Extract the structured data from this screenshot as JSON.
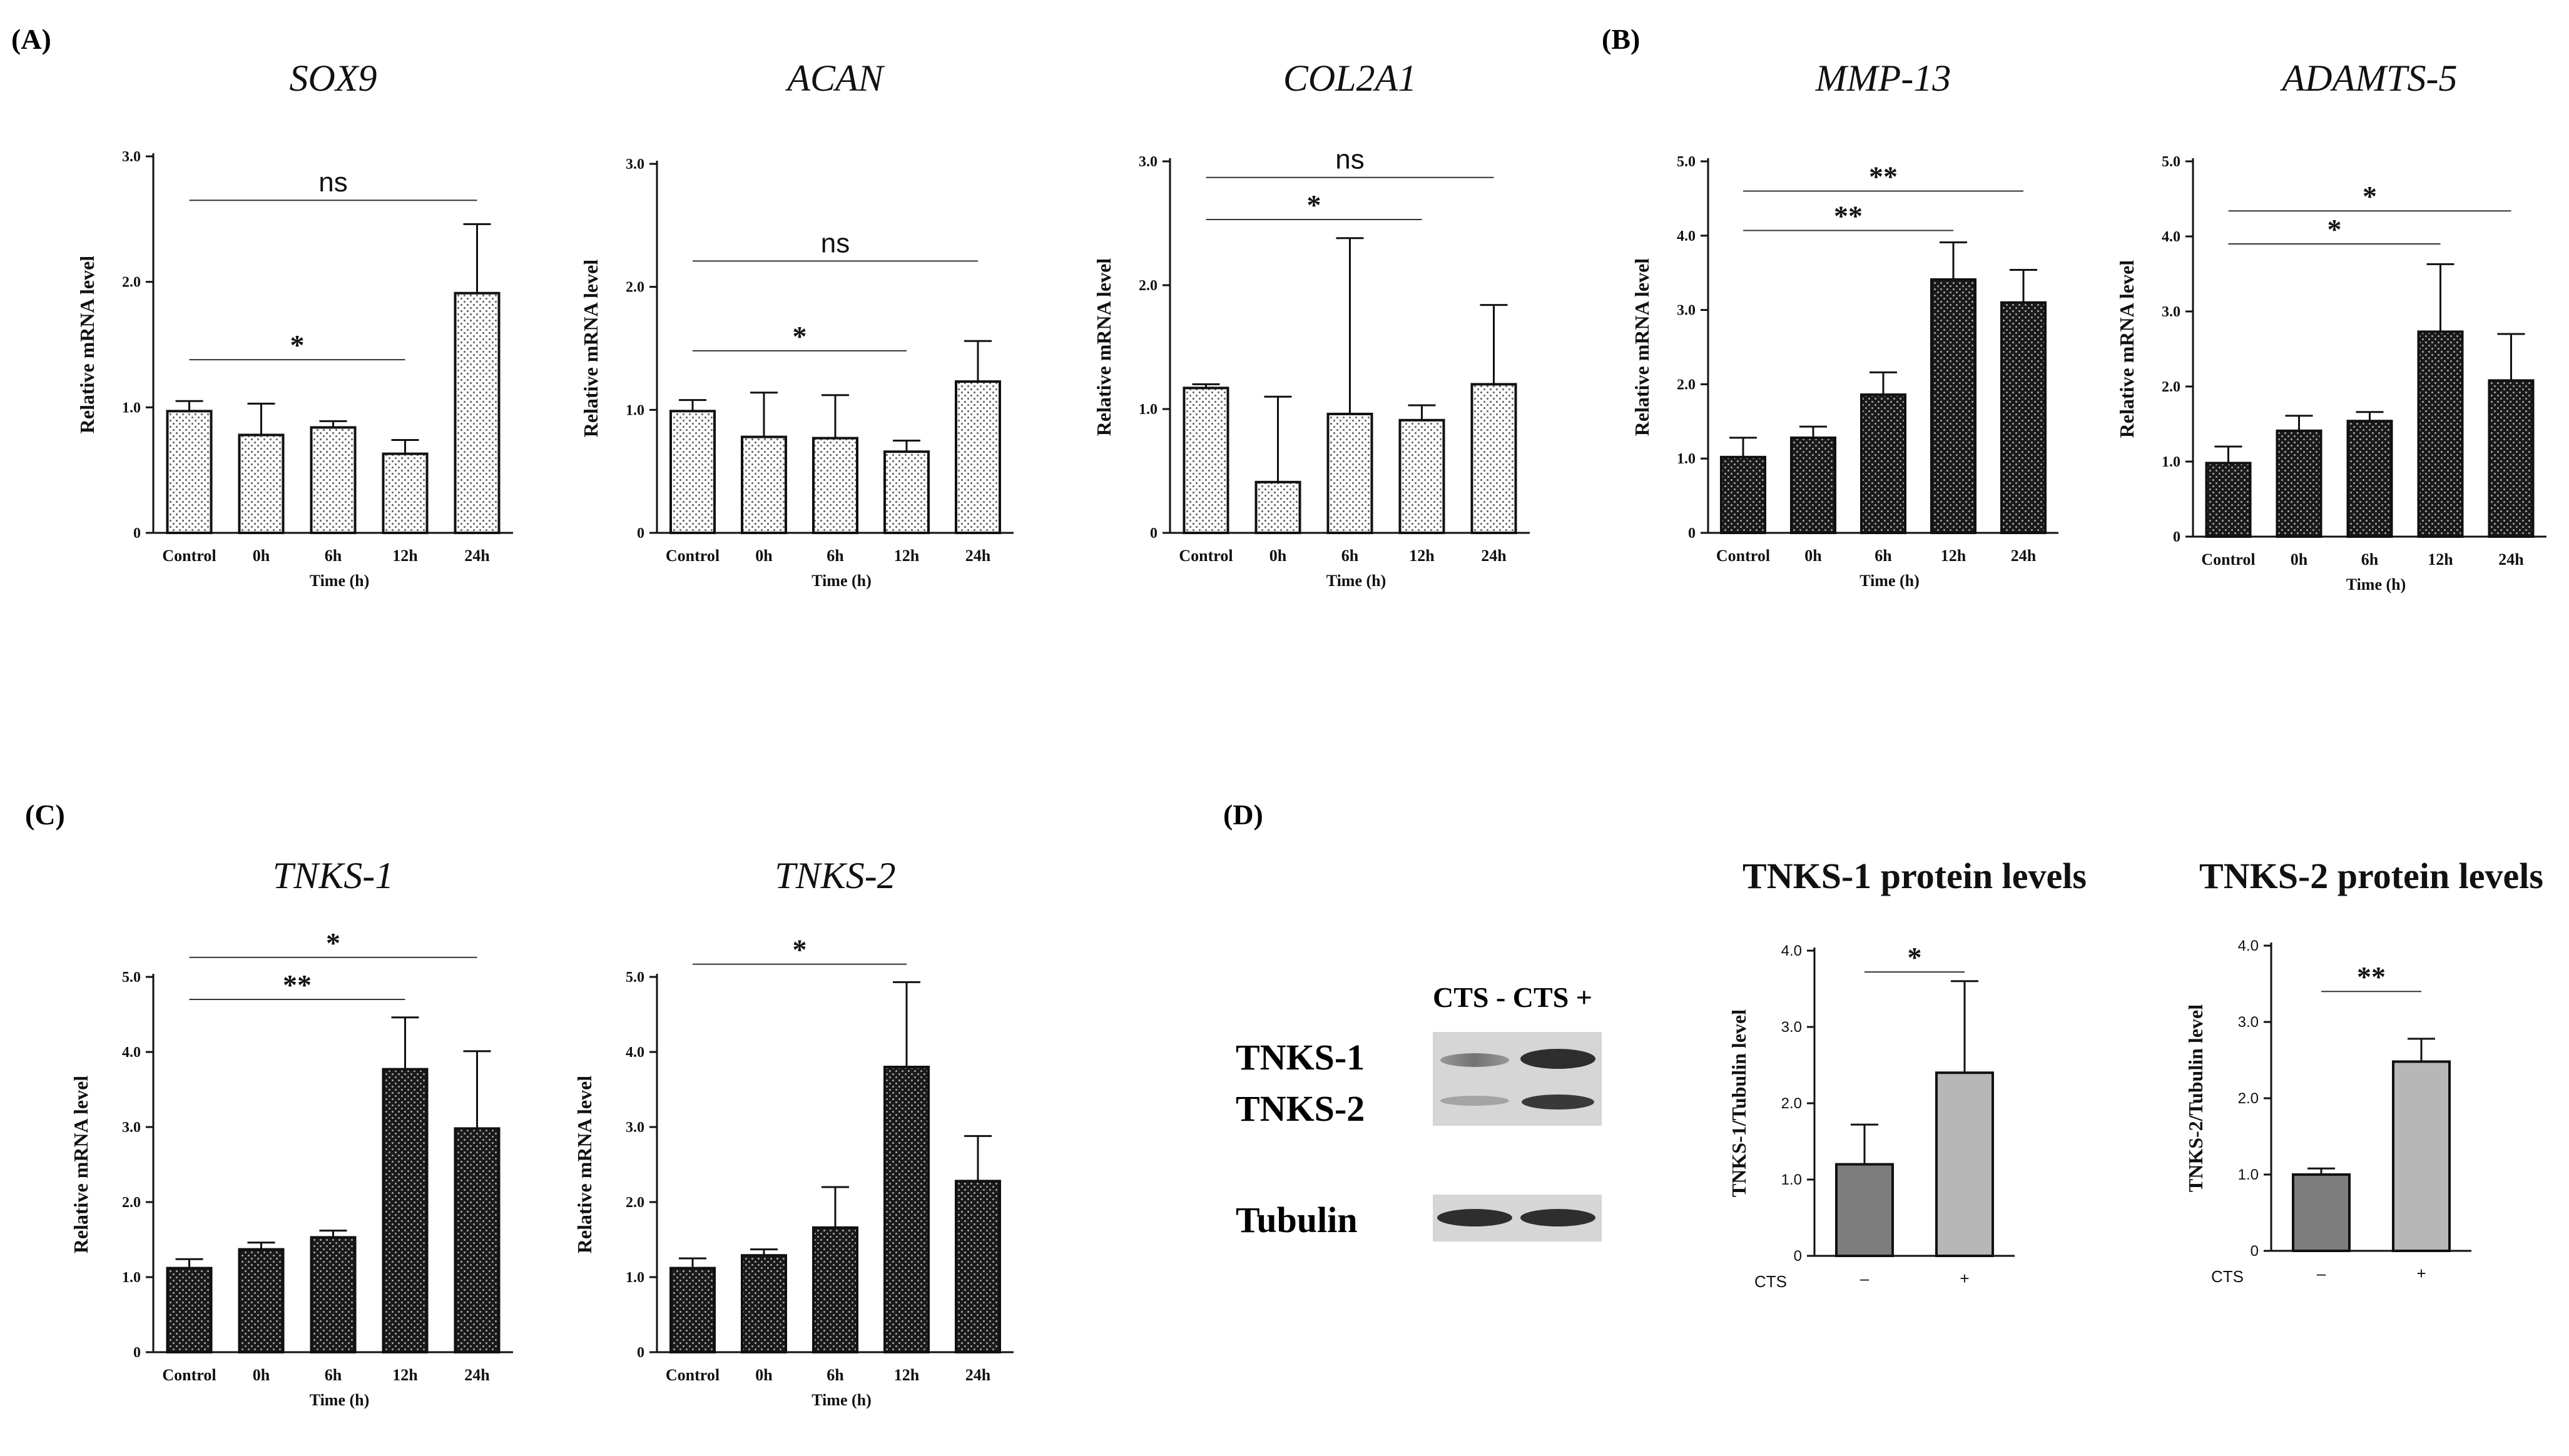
{
  "figure": {
    "panel_labels": [
      "(A)",
      "(B)",
      "(C)",
      "(D)"
    ],
    "blot": {
      "header": "CTS -  CTS +",
      "band_labels": [
        "TNKS-1",
        "TNKS-2",
        "Tubulin"
      ]
    }
  },
  "colors": {
    "axis": "#111111",
    "dark_bar": "#1a1a1a",
    "light_bar": "#ffffff",
    "dot_on_light": "#6a6a6a",
    "dot_on_dark": "#a8a8a8",
    "gray_dark": "#7d7d7d",
    "gray_light": "#b7b7b7"
  },
  "chart_data": [
    {
      "type": "bar",
      "panel": "A",
      "style": "light",
      "title": "SOX9",
      "title_italic": true,
      "xlabel": "Time (h)",
      "ylabel": "Relative mRNA level",
      "categories": [
        "Control",
        "0h",
        "6h",
        "12h",
        "24h"
      ],
      "values": [
        0.97,
        0.78,
        0.84,
        0.63,
        1.91
      ],
      "errors": [
        0.08,
        0.25,
        0.05,
        0.11,
        0.55
      ],
      "ylim": [
        0,
        3.0
      ],
      "yticks": [
        "0",
        "1.0",
        "2.0",
        "3.0"
      ],
      "ytick_values": [
        0,
        1,
        2,
        3
      ],
      "significance": [
        {
          "from": 0,
          "to": 3,
          "label": "*",
          "y": 1.38
        },
        {
          "from": 0,
          "to": 4,
          "label": "ns",
          "y": 2.65
        }
      ]
    },
    {
      "type": "bar",
      "panel": "A",
      "style": "light",
      "title": "ACAN",
      "title_italic": true,
      "xlabel": "Time (h)",
      "ylabel": "Relative mRNA level",
      "categories": [
        "Control",
        "0h",
        "6h",
        "12h",
        "24h"
      ],
      "values": [
        0.99,
        0.78,
        0.77,
        0.66,
        1.23
      ],
      "errors": [
        0.09,
        0.36,
        0.35,
        0.09,
        0.33
      ],
      "ylim": [
        0,
        3.0
      ],
      "yticks": [
        "0",
        "1.0",
        "2.0",
        "3.0"
      ],
      "ytick_values": [
        0,
        1,
        2,
        3
      ],
      "significance": [
        {
          "from": 0,
          "to": 3,
          "label": "*",
          "y": 1.48
        },
        {
          "from": 0,
          "to": 4,
          "label": "ns",
          "y": 2.21
        }
      ]
    },
    {
      "type": "bar",
      "panel": "A",
      "style": "light",
      "title": "COL2A1",
      "title_italic": true,
      "xlabel": "Time (h)",
      "ylabel": "Relative mRNA level",
      "categories": [
        "Control",
        "0h",
        "6h",
        "12h",
        "24h"
      ],
      "values": [
        1.17,
        0.41,
        0.96,
        0.91,
        1.2
      ],
      "errors": [
        0.03,
        0.69,
        1.42,
        0.12,
        0.64
      ],
      "ylim": [
        0,
        3.0
      ],
      "yticks": [
        "0",
        "1.0",
        "2.0",
        "3.0"
      ],
      "ytick_values": [
        0,
        1,
        2,
        3
      ],
      "significance": [
        {
          "from": 0,
          "to": 3,
          "label": "*",
          "y": 2.53
        },
        {
          "from": 0,
          "to": 4,
          "label": "ns",
          "y": 2.87
        }
      ]
    },
    {
      "type": "bar",
      "panel": "B",
      "style": "dark",
      "title": "MMP-13",
      "title_italic": true,
      "xlabel": "Time (h)",
      "ylabel": "Relative mRNA level",
      "categories": [
        "Control",
        "0h",
        "6h",
        "12h",
        "24h"
      ],
      "values": [
        1.02,
        1.28,
        1.86,
        3.41,
        3.1
      ],
      "errors": [
        0.26,
        0.15,
        0.3,
        0.5,
        0.44
      ],
      "ylim": [
        0,
        5.0
      ],
      "yticks": [
        "0",
        "1.0",
        "2.0",
        "3.0",
        "4.0",
        "5.0"
      ],
      "ytick_values": [
        0,
        1,
        2,
        3,
        4,
        5
      ],
      "significance": [
        {
          "from": 0,
          "to": 3,
          "label": "**",
          "y": 4.07
        },
        {
          "from": 0,
          "to": 4,
          "label": "**",
          "y": 4.6
        }
      ]
    },
    {
      "type": "bar",
      "panel": "B",
      "style": "dark",
      "title": "ADAMTS-5",
      "title_italic": true,
      "xlabel": "Time (h)",
      "ylabel": "Relative mRNA level",
      "categories": [
        "Control",
        "0h",
        "6h",
        "12h",
        "24h"
      ],
      "values": [
        0.98,
        1.41,
        1.54,
        2.73,
        2.08
      ],
      "errors": [
        0.22,
        0.2,
        0.12,
        0.9,
        0.62
      ],
      "ylim": [
        0,
        5.0
      ],
      "yticks": [
        "0",
        "1.0",
        "2.0",
        "3.0",
        "4.0",
        "5.0"
      ],
      "ytick_values": [
        0,
        1,
        2,
        3,
        4,
        5
      ],
      "significance": [
        {
          "from": 0,
          "to": 3,
          "label": "*",
          "y": 3.9
        },
        {
          "from": 0,
          "to": 4,
          "label": "*",
          "y": 4.34
        }
      ]
    },
    {
      "type": "bar",
      "panel": "C",
      "style": "dark",
      "title": "TNKS-1",
      "title_italic": true,
      "xlabel": "Time (h)",
      "ylabel": "Relative mRNA level",
      "categories": [
        "Control",
        "0h",
        "6h",
        "12h",
        "24h"
      ],
      "values": [
        1.12,
        1.37,
        1.53,
        3.77,
        2.98
      ],
      "errors": [
        0.12,
        0.09,
        0.09,
        0.69,
        1.03
      ],
      "ylim": [
        0,
        5.0
      ],
      "yticks": [
        "0",
        "1.0",
        "2.0",
        "3.0",
        "4.0",
        "5.0"
      ],
      "ytick_values": [
        0,
        1,
        2,
        3,
        4,
        5
      ],
      "significance": [
        {
          "from": 0,
          "to": 3,
          "label": "**",
          "y": 4.7
        },
        {
          "from": 0,
          "to": 4,
          "label": "*",
          "y": 5.26
        }
      ]
    },
    {
      "type": "bar",
      "panel": "C",
      "style": "dark",
      "title": "TNKS-2",
      "title_italic": true,
      "xlabel": "Time (h)",
      "ylabel": "Relative mRNA level",
      "categories": [
        "Control",
        "0h",
        "6h",
        "12h",
        "24h"
      ],
      "values": [
        1.12,
        1.29,
        1.66,
        3.8,
        2.28
      ],
      "errors": [
        0.13,
        0.08,
        0.54,
        1.13,
        0.6
      ],
      "ylim": [
        0,
        5.0
      ],
      "yticks": [
        "0",
        "1.0",
        "2.0",
        "3.0",
        "4.0",
        "5.0"
      ],
      "ytick_values": [
        0,
        1,
        2,
        3,
        4,
        5
      ],
      "significance": [
        {
          "from": 0,
          "to": 3,
          "label": "*",
          "y": 5.17
        }
      ]
    },
    {
      "type": "bar",
      "panel": "D",
      "style": "gray",
      "title": "TNKS-1 protein levels",
      "title_italic": false,
      "xlabel": "CTS",
      "ylabel": "TNKS-1/Tubulin level",
      "categories": [
        "–",
        "+"
      ],
      "values": [
        1.2,
        2.4
      ],
      "errors": [
        0.52,
        1.2
      ],
      "ylim": [
        0,
        4.0
      ],
      "yticks": [
        "0",
        "1.0",
        "2.0",
        "3.0",
        "4.0"
      ],
      "ytick_values": [
        0,
        1,
        2,
        3,
        4
      ],
      "significance": [
        {
          "from": 0,
          "to": 1,
          "label": "*",
          "y": 3.72
        }
      ]
    },
    {
      "type": "bar",
      "panel": "D",
      "style": "gray",
      "title": "TNKS-2 protein levels",
      "title_italic": false,
      "xlabel": "CTS",
      "ylabel": "TNKS-2/Tubulin level",
      "categories": [
        "–",
        "+"
      ],
      "values": [
        1.0,
        2.48
      ],
      "errors": [
        0.08,
        0.3
      ],
      "ylim": [
        0,
        4.0
      ],
      "yticks": [
        "0",
        "1.0",
        "2.0",
        "3.0",
        "4.0"
      ],
      "ytick_values": [
        0,
        1,
        2,
        3,
        4
      ],
      "significance": [
        {
          "from": 0,
          "to": 1,
          "label": "**",
          "y": 3.4
        }
      ]
    }
  ]
}
